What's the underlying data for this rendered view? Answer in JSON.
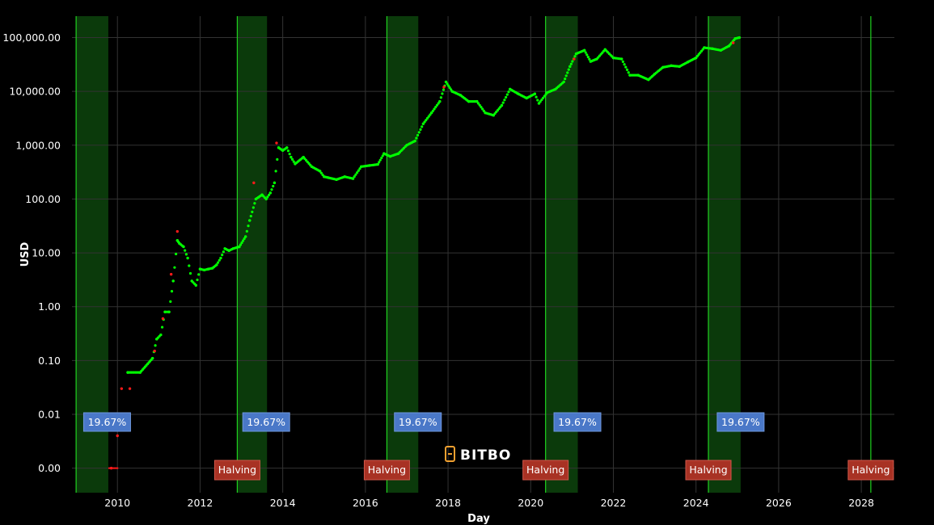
{
  "brand": {
    "name": "BITBO"
  },
  "colors": {
    "background": "#000000",
    "grid": "#333333",
    "band_fill": "#0b3a0b",
    "halving_line": "#1fd21f",
    "price_up": "#00ff00",
    "price_down": "#ff1a1a",
    "pct_box": "#4a78c8",
    "halving_box": "#a83224"
  },
  "chart_data": {
    "type": "scatter",
    "xlabel": "Day",
    "ylabel": "USD",
    "y_scale": "log",
    "xlim": [
      2008.9,
      2028.8
    ],
    "ylim": [
      0.00035,
      250000
    ],
    "x_ticks": [
      2010,
      2012,
      2014,
      2016,
      2018,
      2020,
      2022,
      2024,
      2026,
      2028
    ],
    "x_tick_labels": [
      "2010",
      "2012",
      "2014",
      "2016",
      "2018",
      "2020",
      "2022",
      "2024",
      "2026",
      "2028"
    ],
    "y_ticks": [
      0.001,
      0.01,
      0.1,
      1,
      10,
      100,
      1000,
      10000,
      100000
    ],
    "y_tick_labels": [
      "0.00",
      "0.01",
      "0.10",
      "1.00",
      "10.00",
      "100.00",
      "1,000.00",
      "10,000.00",
      "100,000.00"
    ],
    "grid": true,
    "shaded_bands": [
      {
        "start": 2009.0,
        "end": 2009.78
      },
      {
        "start": 2012.9,
        "end": 2013.62
      },
      {
        "start": 2016.52,
        "end": 2017.28
      },
      {
        "start": 2020.36,
        "end": 2021.14
      },
      {
        "start": 2024.3,
        "end": 2025.08
      }
    ],
    "halvings": [
      2012.9,
      2016.52,
      2020.36,
      2024.3,
      2028.23
    ],
    "halving_label": "Halving",
    "pct_labels": [
      {
        "x": 2009.75,
        "text": "19.67%"
      },
      {
        "x": 2013.6,
        "text": "19.67%"
      },
      {
        "x": 2017.27,
        "text": "19.67%"
      },
      {
        "x": 2021.13,
        "text": "19.67%"
      },
      {
        "x": 2025.08,
        "text": "19.67%"
      }
    ],
    "series": [
      {
        "color": "#00ff00",
        "points": [
          [
            2010.25,
            0.06
          ],
          [
            2010.55,
            0.06
          ],
          [
            2010.85,
            0.11
          ],
          [
            2010.95,
            0.25
          ],
          [
            2011.05,
            0.3
          ],
          [
            2011.15,
            0.8
          ],
          [
            2011.25,
            0.8
          ],
          [
            2011.35,
            3.0
          ],
          [
            2011.45,
            17
          ],
          [
            2011.5,
            15
          ],
          [
            2011.6,
            13
          ],
          [
            2011.7,
            8
          ],
          [
            2011.8,
            3
          ],
          [
            2011.9,
            2.5
          ],
          [
            2012.0,
            5
          ],
          [
            2012.1,
            4.8
          ],
          [
            2012.2,
            5
          ],
          [
            2012.3,
            5.2
          ],
          [
            2012.4,
            6
          ],
          [
            2012.5,
            8
          ],
          [
            2012.6,
            12
          ],
          [
            2012.7,
            11
          ],
          [
            2012.8,
            12
          ],
          [
            2012.95,
            13
          ],
          [
            2013.1,
            20
          ],
          [
            2013.2,
            40
          ],
          [
            2013.35,
            100
          ],
          [
            2013.5,
            120
          ],
          [
            2013.6,
            100
          ],
          [
            2013.7,
            130
          ],
          [
            2013.8,
            200
          ],
          [
            2013.9,
            900
          ],
          [
            2014.0,
            800
          ],
          [
            2014.1,
            900
          ],
          [
            2014.2,
            600
          ],
          [
            2014.3,
            450
          ],
          [
            2014.5,
            600
          ],
          [
            2014.7,
            400
          ],
          [
            2014.9,
            330
          ],
          [
            2015.0,
            260
          ],
          [
            2015.1,
            250
          ],
          [
            2015.3,
            230
          ],
          [
            2015.5,
            260
          ],
          [
            2015.7,
            240
          ],
          [
            2015.9,
            400
          ],
          [
            2016.1,
            420
          ],
          [
            2016.3,
            440
          ],
          [
            2016.45,
            700
          ],
          [
            2016.6,
            620
          ],
          [
            2016.8,
            700
          ],
          [
            2017.0,
            1000
          ],
          [
            2017.2,
            1200
          ],
          [
            2017.4,
            2500
          ],
          [
            2017.6,
            4000
          ],
          [
            2017.8,
            6500
          ],
          [
            2017.95,
            15000
          ],
          [
            2018.1,
            10000
          ],
          [
            2018.3,
            8500
          ],
          [
            2018.5,
            6500
          ],
          [
            2018.7,
            6500
          ],
          [
            2018.9,
            4000
          ],
          [
            2019.1,
            3600
          ],
          [
            2019.3,
            5500
          ],
          [
            2019.5,
            11000
          ],
          [
            2019.7,
            9000
          ],
          [
            2019.9,
            7500
          ],
          [
            2020.1,
            9000
          ],
          [
            2020.2,
            6000
          ],
          [
            2020.4,
            9500
          ],
          [
            2020.6,
            11000
          ],
          [
            2020.8,
            15000
          ],
          [
            2020.95,
            29000
          ],
          [
            2021.1,
            50000
          ],
          [
            2021.3,
            58000
          ],
          [
            2021.45,
            36000
          ],
          [
            2021.6,
            40000
          ],
          [
            2021.8,
            60000
          ],
          [
            2022.0,
            42000
          ],
          [
            2022.2,
            40000
          ],
          [
            2022.4,
            20000
          ],
          [
            2022.6,
            20000
          ],
          [
            2022.85,
            16500
          ],
          [
            2023.0,
            21000
          ],
          [
            2023.2,
            28000
          ],
          [
            2023.4,
            30000
          ],
          [
            2023.6,
            29000
          ],
          [
            2023.8,
            35000
          ],
          [
            2024.0,
            42000
          ],
          [
            2024.2,
            65000
          ],
          [
            2024.4,
            62000
          ],
          [
            2024.6,
            58000
          ],
          [
            2024.8,
            70000
          ],
          [
            2024.95,
            96000
          ],
          [
            2025.05,
            100000
          ]
        ]
      },
      {
        "color": "#ff1a1a",
        "points": [
          [
            2009.85,
            0.001
          ],
          [
            2010.0,
            0.004
          ],
          [
            2010.1,
            0.03
          ],
          [
            2010.3,
            0.03
          ],
          [
            2010.9,
            0.15
          ],
          [
            2011.1,
            0.6
          ],
          [
            2011.3,
            4
          ],
          [
            2011.45,
            25
          ],
          [
            2013.3,
            200
          ],
          [
            2013.85,
            1100
          ],
          [
            2017.9,
            12000
          ],
          [
            2021.05,
            40000
          ],
          [
            2024.9,
            80000
          ]
        ]
      }
    ]
  }
}
